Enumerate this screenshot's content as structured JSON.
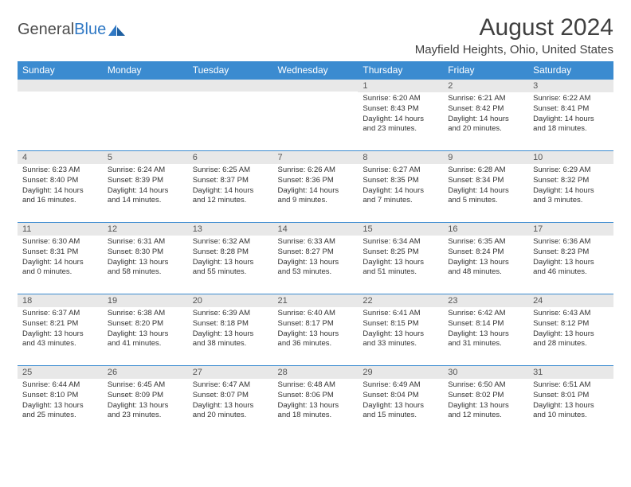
{
  "logo": {
    "text1": "General",
    "text2": "Blue"
  },
  "title": "August 2024",
  "location": "Mayfield Heights, Ohio, United States",
  "colors": {
    "header_bg": "#3b8bd0",
    "header_fg": "#ffffff",
    "daynum_bg": "#e8e8e8",
    "day_border": "#3b8bd0",
    "text": "#333333",
    "logo_gray": "#4d4d4d",
    "logo_blue": "#2f78c4"
  },
  "day_headers": [
    "Sunday",
    "Monday",
    "Tuesday",
    "Wednesday",
    "Thursday",
    "Friday",
    "Saturday"
  ],
  "weeks": [
    [
      {
        "n": "",
        "lines": []
      },
      {
        "n": "",
        "lines": []
      },
      {
        "n": "",
        "lines": []
      },
      {
        "n": "",
        "lines": []
      },
      {
        "n": "1",
        "lines": [
          "Sunrise: 6:20 AM",
          "Sunset: 8:43 PM",
          "Daylight: 14 hours and 23 minutes."
        ]
      },
      {
        "n": "2",
        "lines": [
          "Sunrise: 6:21 AM",
          "Sunset: 8:42 PM",
          "Daylight: 14 hours and 20 minutes."
        ]
      },
      {
        "n": "3",
        "lines": [
          "Sunrise: 6:22 AM",
          "Sunset: 8:41 PM",
          "Daylight: 14 hours and 18 minutes."
        ]
      }
    ],
    [
      {
        "n": "4",
        "lines": [
          "Sunrise: 6:23 AM",
          "Sunset: 8:40 PM",
          "Daylight: 14 hours and 16 minutes."
        ]
      },
      {
        "n": "5",
        "lines": [
          "Sunrise: 6:24 AM",
          "Sunset: 8:39 PM",
          "Daylight: 14 hours and 14 minutes."
        ]
      },
      {
        "n": "6",
        "lines": [
          "Sunrise: 6:25 AM",
          "Sunset: 8:37 PM",
          "Daylight: 14 hours and 12 minutes."
        ]
      },
      {
        "n": "7",
        "lines": [
          "Sunrise: 6:26 AM",
          "Sunset: 8:36 PM",
          "Daylight: 14 hours and 9 minutes."
        ]
      },
      {
        "n": "8",
        "lines": [
          "Sunrise: 6:27 AM",
          "Sunset: 8:35 PM",
          "Daylight: 14 hours and 7 minutes."
        ]
      },
      {
        "n": "9",
        "lines": [
          "Sunrise: 6:28 AM",
          "Sunset: 8:34 PM",
          "Daylight: 14 hours and 5 minutes."
        ]
      },
      {
        "n": "10",
        "lines": [
          "Sunrise: 6:29 AM",
          "Sunset: 8:32 PM",
          "Daylight: 14 hours and 3 minutes."
        ]
      }
    ],
    [
      {
        "n": "11",
        "lines": [
          "Sunrise: 6:30 AM",
          "Sunset: 8:31 PM",
          "Daylight: 14 hours and 0 minutes."
        ]
      },
      {
        "n": "12",
        "lines": [
          "Sunrise: 6:31 AM",
          "Sunset: 8:30 PM",
          "Daylight: 13 hours and 58 minutes."
        ]
      },
      {
        "n": "13",
        "lines": [
          "Sunrise: 6:32 AM",
          "Sunset: 8:28 PM",
          "Daylight: 13 hours and 55 minutes."
        ]
      },
      {
        "n": "14",
        "lines": [
          "Sunrise: 6:33 AM",
          "Sunset: 8:27 PM",
          "Daylight: 13 hours and 53 minutes."
        ]
      },
      {
        "n": "15",
        "lines": [
          "Sunrise: 6:34 AM",
          "Sunset: 8:25 PM",
          "Daylight: 13 hours and 51 minutes."
        ]
      },
      {
        "n": "16",
        "lines": [
          "Sunrise: 6:35 AM",
          "Sunset: 8:24 PM",
          "Daylight: 13 hours and 48 minutes."
        ]
      },
      {
        "n": "17",
        "lines": [
          "Sunrise: 6:36 AM",
          "Sunset: 8:23 PM",
          "Daylight: 13 hours and 46 minutes."
        ]
      }
    ],
    [
      {
        "n": "18",
        "lines": [
          "Sunrise: 6:37 AM",
          "Sunset: 8:21 PM",
          "Daylight: 13 hours and 43 minutes."
        ]
      },
      {
        "n": "19",
        "lines": [
          "Sunrise: 6:38 AM",
          "Sunset: 8:20 PM",
          "Daylight: 13 hours and 41 minutes."
        ]
      },
      {
        "n": "20",
        "lines": [
          "Sunrise: 6:39 AM",
          "Sunset: 8:18 PM",
          "Daylight: 13 hours and 38 minutes."
        ]
      },
      {
        "n": "21",
        "lines": [
          "Sunrise: 6:40 AM",
          "Sunset: 8:17 PM",
          "Daylight: 13 hours and 36 minutes."
        ]
      },
      {
        "n": "22",
        "lines": [
          "Sunrise: 6:41 AM",
          "Sunset: 8:15 PM",
          "Daylight: 13 hours and 33 minutes."
        ]
      },
      {
        "n": "23",
        "lines": [
          "Sunrise: 6:42 AM",
          "Sunset: 8:14 PM",
          "Daylight: 13 hours and 31 minutes."
        ]
      },
      {
        "n": "24",
        "lines": [
          "Sunrise: 6:43 AM",
          "Sunset: 8:12 PM",
          "Daylight: 13 hours and 28 minutes."
        ]
      }
    ],
    [
      {
        "n": "25",
        "lines": [
          "Sunrise: 6:44 AM",
          "Sunset: 8:10 PM",
          "Daylight: 13 hours and 25 minutes."
        ]
      },
      {
        "n": "26",
        "lines": [
          "Sunrise: 6:45 AM",
          "Sunset: 8:09 PM",
          "Daylight: 13 hours and 23 minutes."
        ]
      },
      {
        "n": "27",
        "lines": [
          "Sunrise: 6:47 AM",
          "Sunset: 8:07 PM",
          "Daylight: 13 hours and 20 minutes."
        ]
      },
      {
        "n": "28",
        "lines": [
          "Sunrise: 6:48 AM",
          "Sunset: 8:06 PM",
          "Daylight: 13 hours and 18 minutes."
        ]
      },
      {
        "n": "29",
        "lines": [
          "Sunrise: 6:49 AM",
          "Sunset: 8:04 PM",
          "Daylight: 13 hours and 15 minutes."
        ]
      },
      {
        "n": "30",
        "lines": [
          "Sunrise: 6:50 AM",
          "Sunset: 8:02 PM",
          "Daylight: 13 hours and 12 minutes."
        ]
      },
      {
        "n": "31",
        "lines": [
          "Sunrise: 6:51 AM",
          "Sunset: 8:01 PM",
          "Daylight: 13 hours and 10 minutes."
        ]
      }
    ]
  ]
}
